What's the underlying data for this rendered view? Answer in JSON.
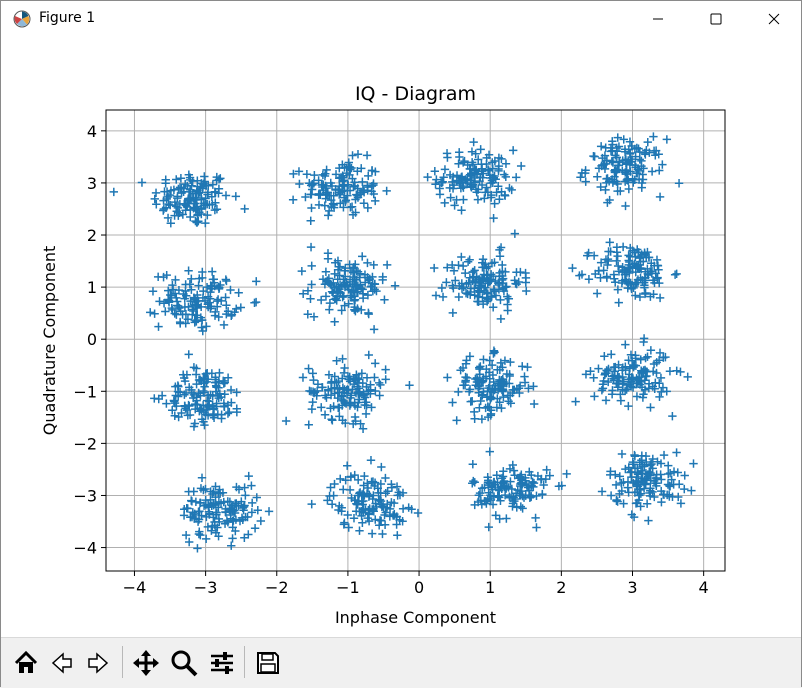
{
  "window": {
    "title": "Figure 1",
    "controls": [
      "minimize-icon",
      "maximize-icon",
      "close-icon"
    ]
  },
  "toolbar": {
    "buttons": [
      "home-icon",
      "back-icon",
      "forward-icon",
      "pan-icon",
      "zoom-icon",
      "configure-subplots-icon",
      "save-icon"
    ]
  },
  "chart_data": {
    "type": "scatter",
    "title": "IQ - Diagram",
    "xlabel": "Inphase Component",
    "ylabel": "Quadrature Component",
    "xlim": [
      -4.4,
      4.3
    ],
    "ylim": [
      -4.45,
      4.4
    ],
    "xticks": [
      -4,
      -3,
      -2,
      -1,
      0,
      1,
      2,
      3,
      4
    ],
    "xtick_labels": [
      "−4",
      "−3",
      "−2",
      "−1",
      "0",
      "1",
      "2",
      "3",
      "4"
    ],
    "yticks": [
      -4,
      -3,
      -2,
      -1,
      0,
      1,
      2,
      3,
      4
    ],
    "ytick_labels": [
      "−4",
      "−3",
      "−2",
      "−1",
      "0",
      "1",
      "2",
      "3",
      "4"
    ],
    "grid": true,
    "marker": "+",
    "color": "#1f77b4",
    "series": [
      {
        "clusters": [
          {
            "cx": -3.2,
            "cy": 2.7,
            "n": 130
          },
          {
            "cx": -1.1,
            "cy": 2.9,
            "n": 130
          },
          {
            "cx": 0.8,
            "cy": 3.1,
            "n": 130
          },
          {
            "cx": 2.9,
            "cy": 3.3,
            "n": 130
          },
          {
            "cx": -3.1,
            "cy": 0.75,
            "n": 130
          },
          {
            "cx": -1.0,
            "cy": 1.0,
            "n": 130
          },
          {
            "cx": 0.9,
            "cy": 1.1,
            "n": 130
          },
          {
            "cx": 3.0,
            "cy": 1.3,
            "n": 130
          },
          {
            "cx": -3.0,
            "cy": -1.1,
            "n": 130
          },
          {
            "cx": -1.0,
            "cy": -1.0,
            "n": 130
          },
          {
            "cx": 1.0,
            "cy": -0.9,
            "n": 130
          },
          {
            "cx": 3.0,
            "cy": -0.7,
            "n": 130
          },
          {
            "cx": -2.8,
            "cy": -3.3,
            "n": 130
          },
          {
            "cx": -0.7,
            "cy": -3.1,
            "n": 130
          },
          {
            "cx": 1.3,
            "cy": -2.9,
            "n": 130
          },
          {
            "cx": 3.2,
            "cy": -2.7,
            "n": 130
          }
        ],
        "spread": 0.27
      }
    ]
  }
}
